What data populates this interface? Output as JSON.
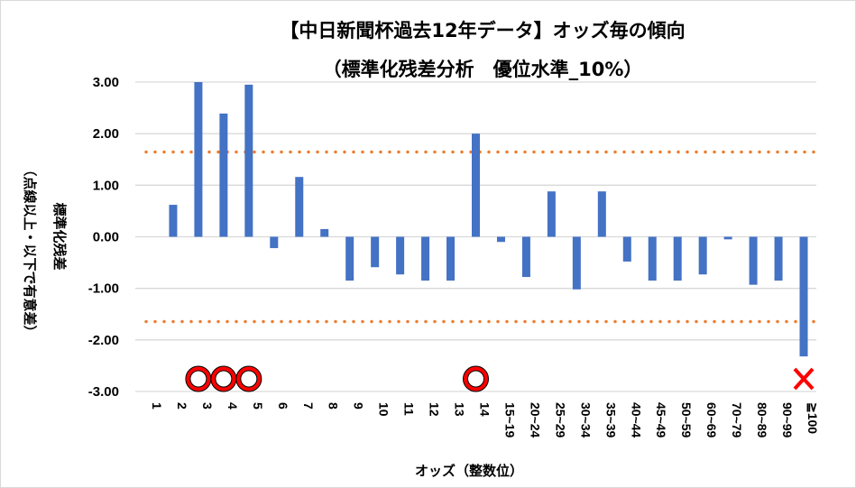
{
  "chart_data": {
    "type": "bar",
    "title": "【中日新聞杯過去12年データ】オッズ毎の傾向",
    "subtitle": "（標準化残差分析　優位水準_10%）",
    "xlabel": "オッズ（整数位）",
    "ylabel": "標準化残差",
    "ylabel_note": "（点線以上・以下で有意差）",
    "ylim": [
      -3,
      3
    ],
    "yticks": [
      "3.00",
      "2.00",
      "1.00",
      "0.00",
      "-1.00",
      "-2.00",
      "-3.00"
    ],
    "ytick_values": [
      3,
      2,
      1,
      0,
      -1,
      -2,
      -3
    ],
    "categories": [
      "1",
      "2",
      "3",
      "4",
      "5",
      "6",
      "7",
      "8",
      "9",
      "10",
      "11",
      "12",
      "13",
      "14",
      "15~19",
      "20~24",
      "25~29",
      "30~34",
      "35~39",
      "40~44",
      "45~49",
      "50~59",
      "60~69",
      "70~79",
      "80~89",
      "90~99",
      "≧100"
    ],
    "values": [
      0,
      0.62,
      3.0,
      2.39,
      2.95,
      -0.22,
      1.16,
      0.15,
      -0.85,
      -0.59,
      -0.73,
      -0.85,
      -0.85,
      2.0,
      -0.1,
      -0.78,
      0.88,
      -1.02,
      0.88,
      -0.48,
      -0.85,
      -0.85,
      -0.73,
      -0.05,
      -0.93,
      -0.85,
      -2.32
    ],
    "thresholds": [
      1.645,
      -1.645
    ],
    "markers": [
      {
        "category": "3",
        "symbol": "circle"
      },
      {
        "category": "4",
        "symbol": "circle"
      },
      {
        "category": "5",
        "symbol": "circle"
      },
      {
        "category": "14",
        "symbol": "circle"
      },
      {
        "category": "≧100",
        "symbol": "cross"
      }
    ],
    "colors": {
      "bar": "#4472c4",
      "threshold": "#ed7d31",
      "grid": "#d9d9d9",
      "marker": "#ff0000"
    },
    "grid": true
  }
}
